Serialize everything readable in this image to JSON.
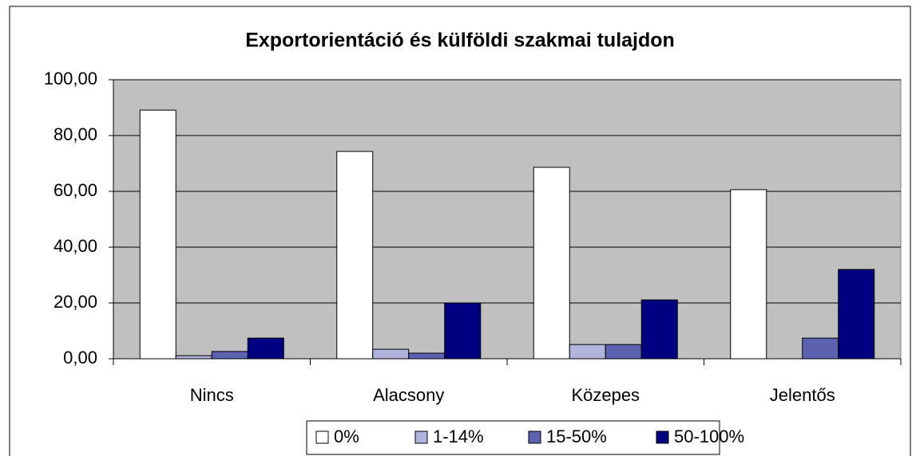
{
  "chart_data": {
    "type": "bar",
    "title": "Exportorientáció és külföldi szakmai tulajdon",
    "categories": [
      "Nincs",
      "Alacsony",
      "Közepes",
      "Jelentős"
    ],
    "series": [
      {
        "name": "0%",
        "color": "#ffffff",
        "values": [
          89.1,
          74.3,
          68.6,
          60.6
        ]
      },
      {
        "name": "1-14%",
        "color": "#b0b4dc",
        "values": [
          1.1,
          3.4,
          5.1,
          0
        ]
      },
      {
        "name": "15-50%",
        "color": "#5c62b0",
        "values": [
          2.6,
          2.0,
          5.1,
          7.4
        ]
      },
      {
        "name": "50-100%",
        "color": "#000080",
        "values": [
          7.4,
          20.0,
          21.1,
          32.0
        ]
      }
    ],
    "ylim": [
      0,
      100
    ],
    "yticks": [
      {
        "value": 0,
        "label": "0,00"
      },
      {
        "value": 20,
        "label": "20,00"
      },
      {
        "value": 40,
        "label": "40,00"
      },
      {
        "value": 60,
        "label": "60,00"
      },
      {
        "value": 80,
        "label": "80,00"
      },
      {
        "value": 100,
        "label": "100,00"
      }
    ],
    "grid": true,
    "legend": "bottom"
  }
}
